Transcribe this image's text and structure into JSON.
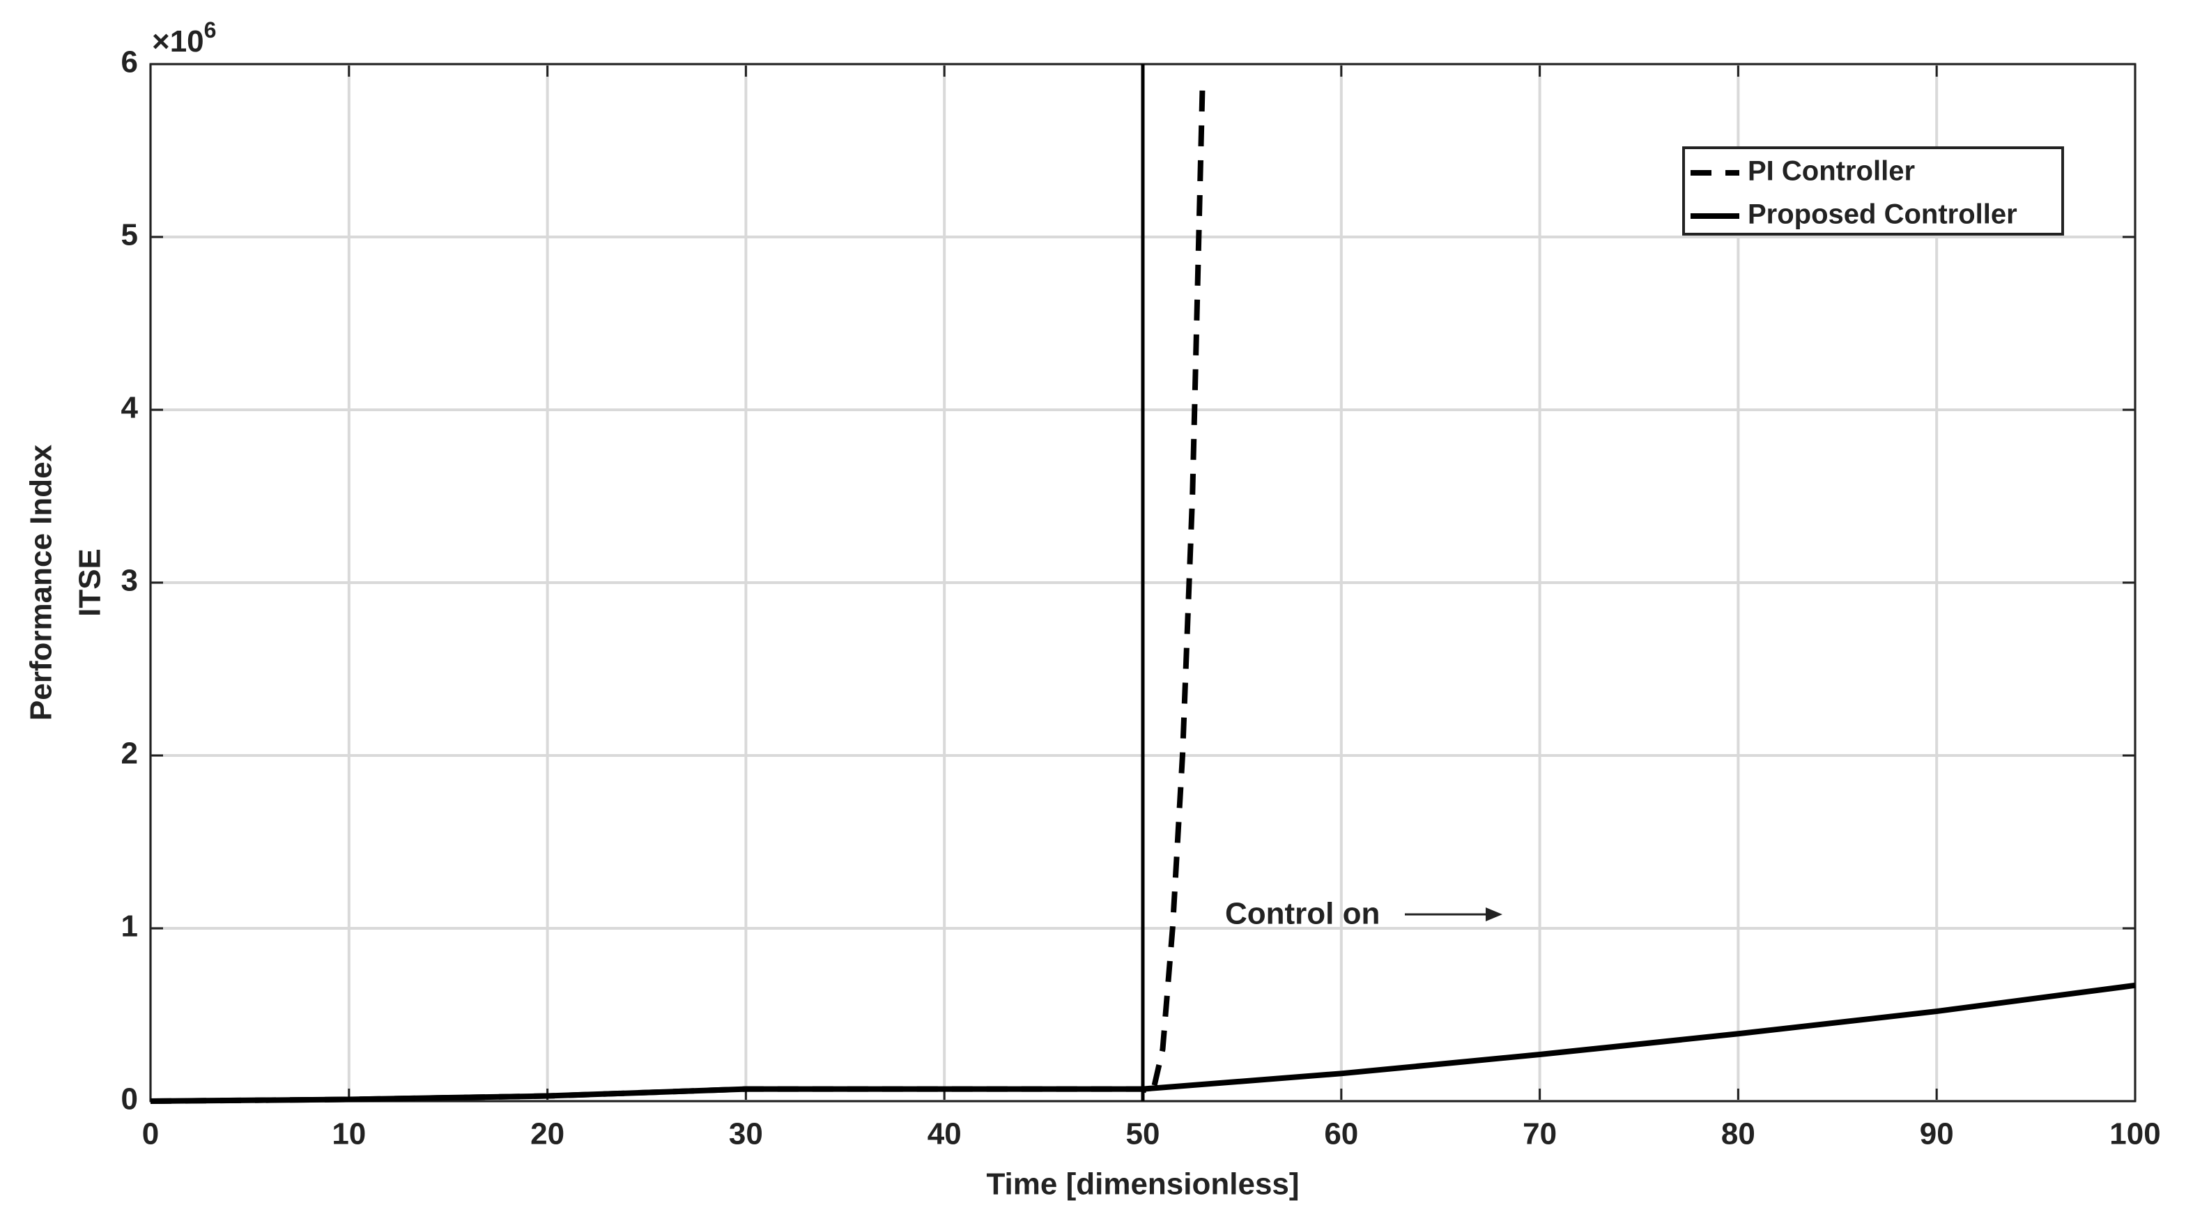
{
  "chart_data": {
    "type": "line",
    "y_multiplier": "×10",
    "y_multiplier_exp": "6",
    "xlabel": "Time [dimensionless]",
    "ylabel": [
      "Performance Index",
      "ITSE"
    ],
    "xlim": [
      0,
      100
    ],
    "ylim": [
      0,
      6
    ],
    "xticks": [
      0,
      10,
      20,
      30,
      40,
      50,
      60,
      70,
      80,
      90,
      100
    ],
    "yticks": [
      0,
      1,
      2,
      3,
      4,
      5,
      6
    ],
    "grid": true,
    "legend": "upper right",
    "vline": 50,
    "annotation": "Control on",
    "series": [
      {
        "name": "PI Controller",
        "color": "#000000",
        "dash": true,
        "x": [
          0,
          10,
          20,
          30,
          40,
          50,
          50.5,
          51,
          51.5,
          52,
          52.5,
          53
        ],
        "values": [
          0,
          0.01,
          0.03,
          0.07,
          0.07,
          0.07,
          0.05,
          0.3,
          1.0,
          2.0,
          3.5,
          5.85
        ]
      },
      {
        "name": "Proposed Controller",
        "color": "#000000",
        "dash": false,
        "x": [
          0,
          10,
          20,
          30,
          40,
          50,
          60,
          70,
          80,
          90,
          100
        ],
        "values": [
          0,
          0.01,
          0.03,
          0.07,
          0.07,
          0.07,
          0.16,
          0.27,
          0.39,
          0.52,
          0.67
        ]
      }
    ]
  }
}
